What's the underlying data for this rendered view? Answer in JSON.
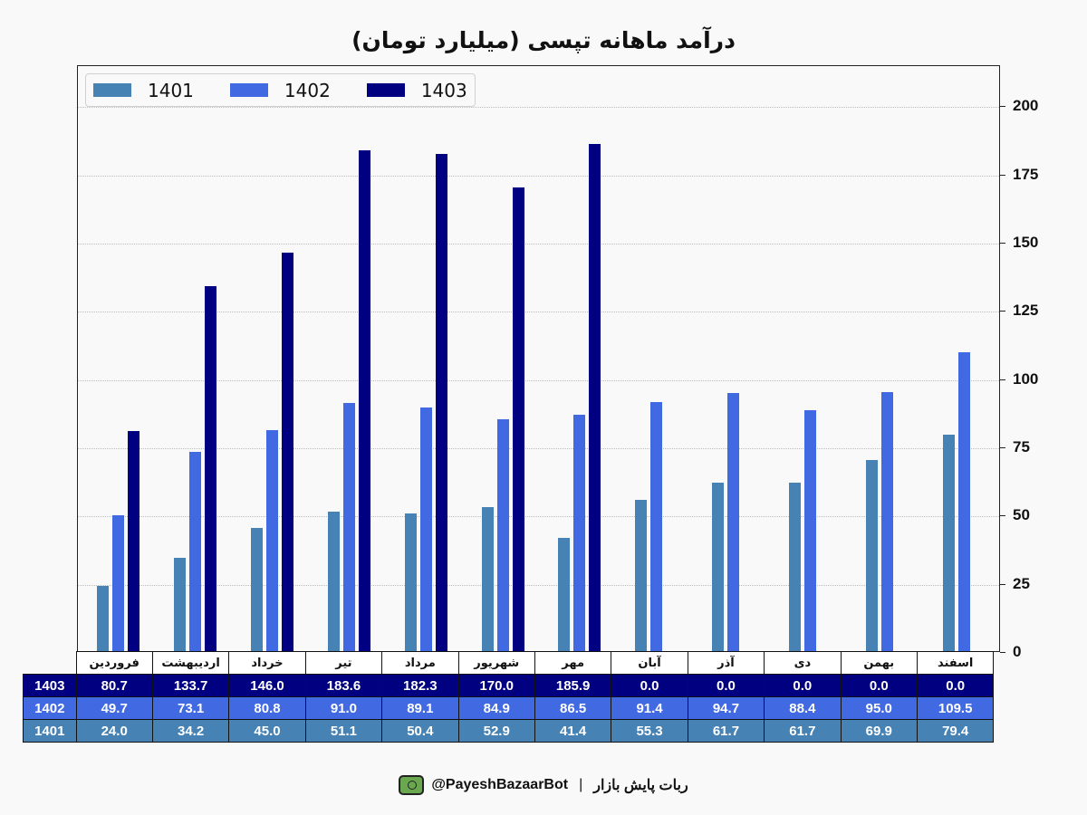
{
  "title": "درآمد ماهانه تپسی (میلیارد تومان)",
  "legend": [
    {
      "label": "1401",
      "color": "#4682b4"
    },
    {
      "label": "1402",
      "color": "#4169e1"
    },
    {
      "label": "1403",
      "color": "#000080"
    }
  ],
  "table": {
    "months": [
      "فروردین",
      "اردیبهشت",
      "خرداد",
      "تیر",
      "مرداد",
      "شهریور",
      "مهر",
      "آبان",
      "آذر",
      "دی",
      "بهمن",
      "اسفند"
    ],
    "rows": [
      {
        "label": "1403",
        "color": "#000080",
        "values": [
          "80.7",
          "133.7",
          "146.0",
          "183.6",
          "182.3",
          "170.0",
          "185.9",
          "0.0",
          "0.0",
          "0.0",
          "0.0",
          "0.0"
        ]
      },
      {
        "label": "1402",
        "color": "#4169e1",
        "values": [
          "49.7",
          "73.1",
          "80.8",
          "91.0",
          "89.1",
          "84.9",
          "86.5",
          "91.4",
          "94.7",
          "88.4",
          "95.0",
          "109.5"
        ]
      },
      {
        "label": "1401",
        "color": "#4682b4",
        "values": [
          "24.0",
          "34.2",
          "45.0",
          "51.1",
          "50.4",
          "52.9",
          "41.4",
          "55.3",
          "61.7",
          "61.7",
          "69.9",
          "79.4"
        ]
      }
    ]
  },
  "footer": {
    "handle": "@PayeshBazaarBot",
    "separator": "|",
    "bot_name": "ربات پایش بازار",
    "icon": "monitor-bot-icon"
  },
  "chart_data": {
    "type": "bar",
    "title": "درآمد ماهانه تپسی (میلیارد تومان)",
    "xlabel": "",
    "ylabel": "",
    "categories": [
      "فروردین",
      "اردیبهشت",
      "خرداد",
      "تیر",
      "مرداد",
      "شهریور",
      "مهر",
      "آبان",
      "آذر",
      "دی",
      "بهمن",
      "اسفند"
    ],
    "series": [
      {
        "name": "1401",
        "color": "#4682b4",
        "values": [
          24.0,
          34.2,
          45.0,
          51.1,
          50.4,
          52.9,
          41.4,
          55.3,
          61.7,
          61.7,
          69.9,
          79.4
        ]
      },
      {
        "name": "1402",
        "color": "#4169e1",
        "values": [
          49.7,
          73.1,
          80.8,
          91.0,
          89.1,
          84.9,
          86.5,
          91.4,
          94.7,
          88.4,
          95.0,
          109.5
        ]
      },
      {
        "name": "1403",
        "color": "#000080",
        "values": [
          80.7,
          133.7,
          146.0,
          183.6,
          182.3,
          170.0,
          185.9,
          0.0,
          0.0,
          0.0,
          0.0,
          0.0
        ]
      }
    ],
    "ylim": [
      0,
      215
    ],
    "yticks": [
      0,
      25,
      50,
      75,
      100,
      125,
      150,
      175,
      200
    ],
    "y_axis_position": "right",
    "grid": true,
    "legend_position": "upper left"
  }
}
